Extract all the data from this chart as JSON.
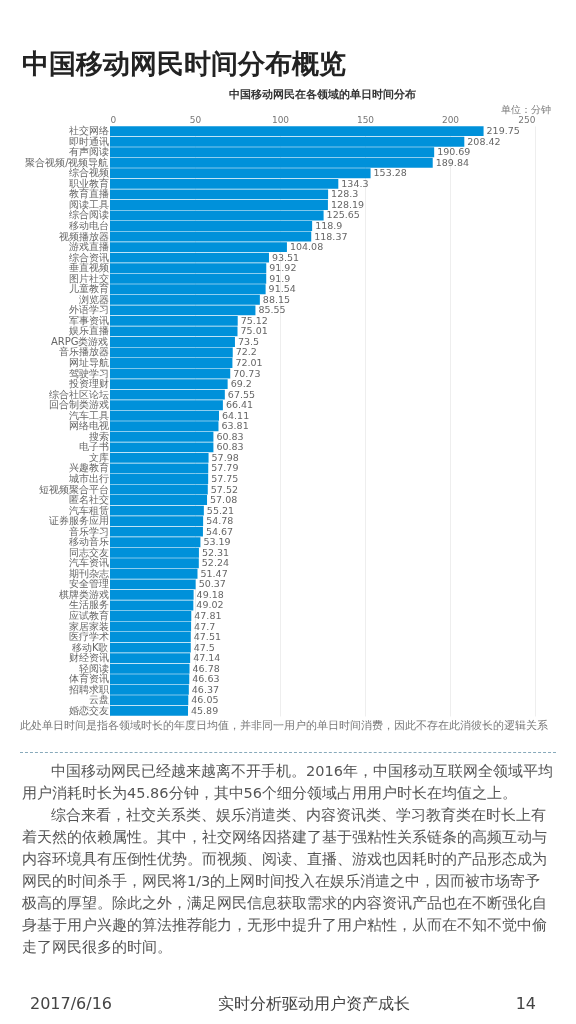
{
  "chart_data": {
    "type": "bar",
    "orientation": "horizontal",
    "title": "中国移动网民时间分布概览",
    "subtitle": "中国移动网民在各领域的单日时间分布",
    "xlabel": "单位：分钟",
    "categories": [
      "社交网络",
      "即时通讯",
      "有声阅读",
      "聚合视频/视频导航",
      "综合视频",
      "职业教育",
      "教育直播",
      "阅读工具",
      "综合阅读",
      "移动电台",
      "视频播放器",
      "游戏直播",
      "综合资讯",
      "垂直视频",
      "图片社交",
      "儿童教育",
      "浏览器",
      "外语学习",
      "军事资讯",
      "娱乐直播",
      "ARPG类游戏",
      "音乐播放器",
      "网址导航",
      "驾驶学习",
      "投资理财",
      "综合社区论坛",
      "回合制类游戏",
      "汽车工具",
      "网络电视",
      "搜索",
      "电子书",
      "文库",
      "兴趣教育",
      "城市出行",
      "短视频聚合平台",
      "匿名社交",
      "汽车租赁",
      "证券服务应用",
      "音乐学习",
      "移动音乐",
      "同志交友",
      "汽车资讯",
      "期刊杂志",
      "安全管理",
      "棋牌类游戏",
      "生活服务",
      "应试教育",
      "家居家装",
      "医疗学术",
      "移动K歌",
      "财经资讯",
      "轻阅读",
      "体育资讯",
      "招聘求职",
      "云盘",
      "婚恋交友"
    ],
    "values": [
      219.75,
      208.42,
      190.69,
      189.84,
      153.28,
      134.3,
      128.3,
      128.19,
      125.65,
      118.9,
      118.37,
      104.08,
      93.51,
      91.92,
      91.9,
      91.54,
      88.15,
      85.55,
      75.12,
      75.01,
      73.5,
      72.2,
      72.01,
      70.73,
      69.2,
      67.55,
      66.41,
      64.11,
      63.81,
      60.83,
      60.83,
      57.98,
      57.79,
      57.75,
      57.52,
      57.08,
      55.21,
      54.78,
      54.67,
      53.19,
      52.31,
      52.24,
      51.47,
      50.37,
      49.18,
      49.02,
      47.81,
      47.7,
      47.51,
      47.5,
      47.14,
      46.78,
      46.63,
      46.37,
      46.05,
      45.89
    ],
    "color": "#0091da",
    "xlim": [
      0,
      250
    ],
    "xticks": [
      0,
      50,
      100,
      150,
      200,
      250
    ],
    "grid": "x",
    "data_labels": true,
    "annotations": [
      "此处单日时间是指各领域时长的年度日均值，并非同一用户的单日时间消费，因此不存在此消彼长的逻辑关系",
      "中国移动网民已经越来越离不开手机。2016年，中国移动互联网全领域平均用户消耗时长为45.86分钟，其中56个细分领域占用用户时长在均值之上。",
      "综合来看，社交关系类、娱乐消遣类、内容资讯类、学习教育类在时长上有着天然的依赖属性。其中，社交网络因搭建了基于强粘性关系链条的高频互动与内容环境具有压倒性优势。而视频、阅读、直播、游戏也因耗时的产品形态成为网民的时间杀手，网民将1/3的上网时间投入在娱乐消遣之中，因而被市场寄予极高的厚望。除此之外，满足网民信息获取需求的内容资讯产品也在不断强化自身基于用户兴趣的算法推荐能力，无形中提升了用户粘性，从而在不知不觉中偷走了网民很多的时间。",
      "2017/6/16",
      "实时分析驱动用户资产成长",
      "14"
    ]
  }
}
